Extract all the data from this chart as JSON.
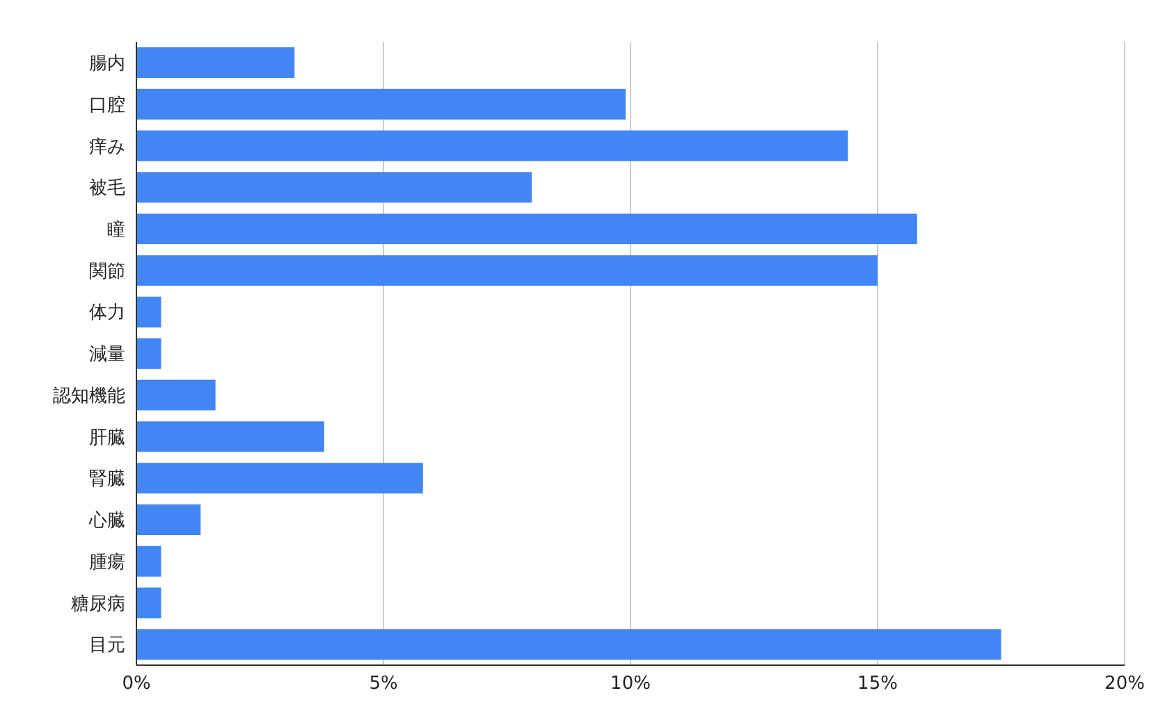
{
  "chart_data": {
    "type": "bar",
    "orientation": "horizontal",
    "categories": [
      "腸内",
      "口腔",
      "痒み",
      "被毛",
      "瞳",
      "関節",
      "体力",
      "減量",
      "認知機能",
      "肝臓",
      "腎臓",
      "心臓",
      "腫瘍",
      "糖尿病",
      "目元"
    ],
    "values": [
      3.2,
      9.9,
      14.4,
      8.0,
      15.8,
      15.0,
      0.5,
      0.5,
      1.6,
      3.8,
      5.8,
      1.3,
      0.5,
      0.5,
      17.5
    ],
    "color": "#4285f4",
    "xlim": [
      0,
      20
    ],
    "xticks": [
      {
        "value": 0,
        "label": "0%"
      },
      {
        "value": 5,
        "label": "5%"
      },
      {
        "value": 10,
        "label": "10%"
      },
      {
        "value": 15,
        "label": "15%"
      },
      {
        "value": 20,
        "label": "20%"
      }
    ],
    "grid": "x",
    "legend": false
  }
}
